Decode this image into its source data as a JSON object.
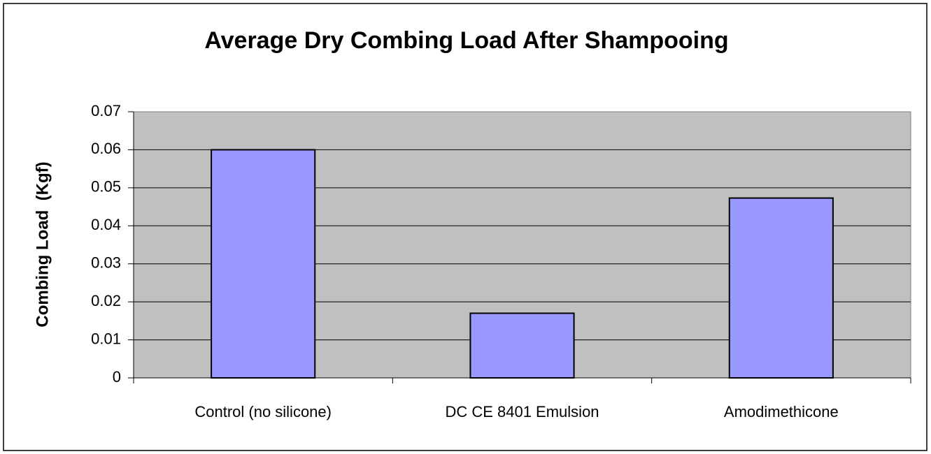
{
  "chart_data": {
    "type": "bar",
    "title": "Average Dry Combing Load After Shampooing",
    "y_label": "Combing Load  (Kgf)",
    "categories": [
      "Control (no silicone)",
      "DC CE 8401 Emulsion",
      "Amodimethicone"
    ],
    "values": [
      0.06,
      0.017,
      0.0473
    ],
    "color": "#9999ff",
    "ylim": [
      0,
      0.07
    ],
    "yticks": [
      0,
      0.01,
      0.02,
      0.03,
      0.04,
      0.05,
      0.06,
      0.07
    ],
    "grid": true
  }
}
